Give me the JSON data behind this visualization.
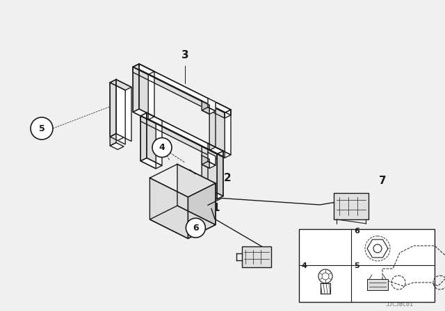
{
  "bg_color": "#f0f0f0",
  "line_color": "#1a1a1a",
  "label_color": "#000000",
  "watermark": "JJCJBC01",
  "fig_width": 6.4,
  "fig_height": 4.48,
  "dpi": 100
}
